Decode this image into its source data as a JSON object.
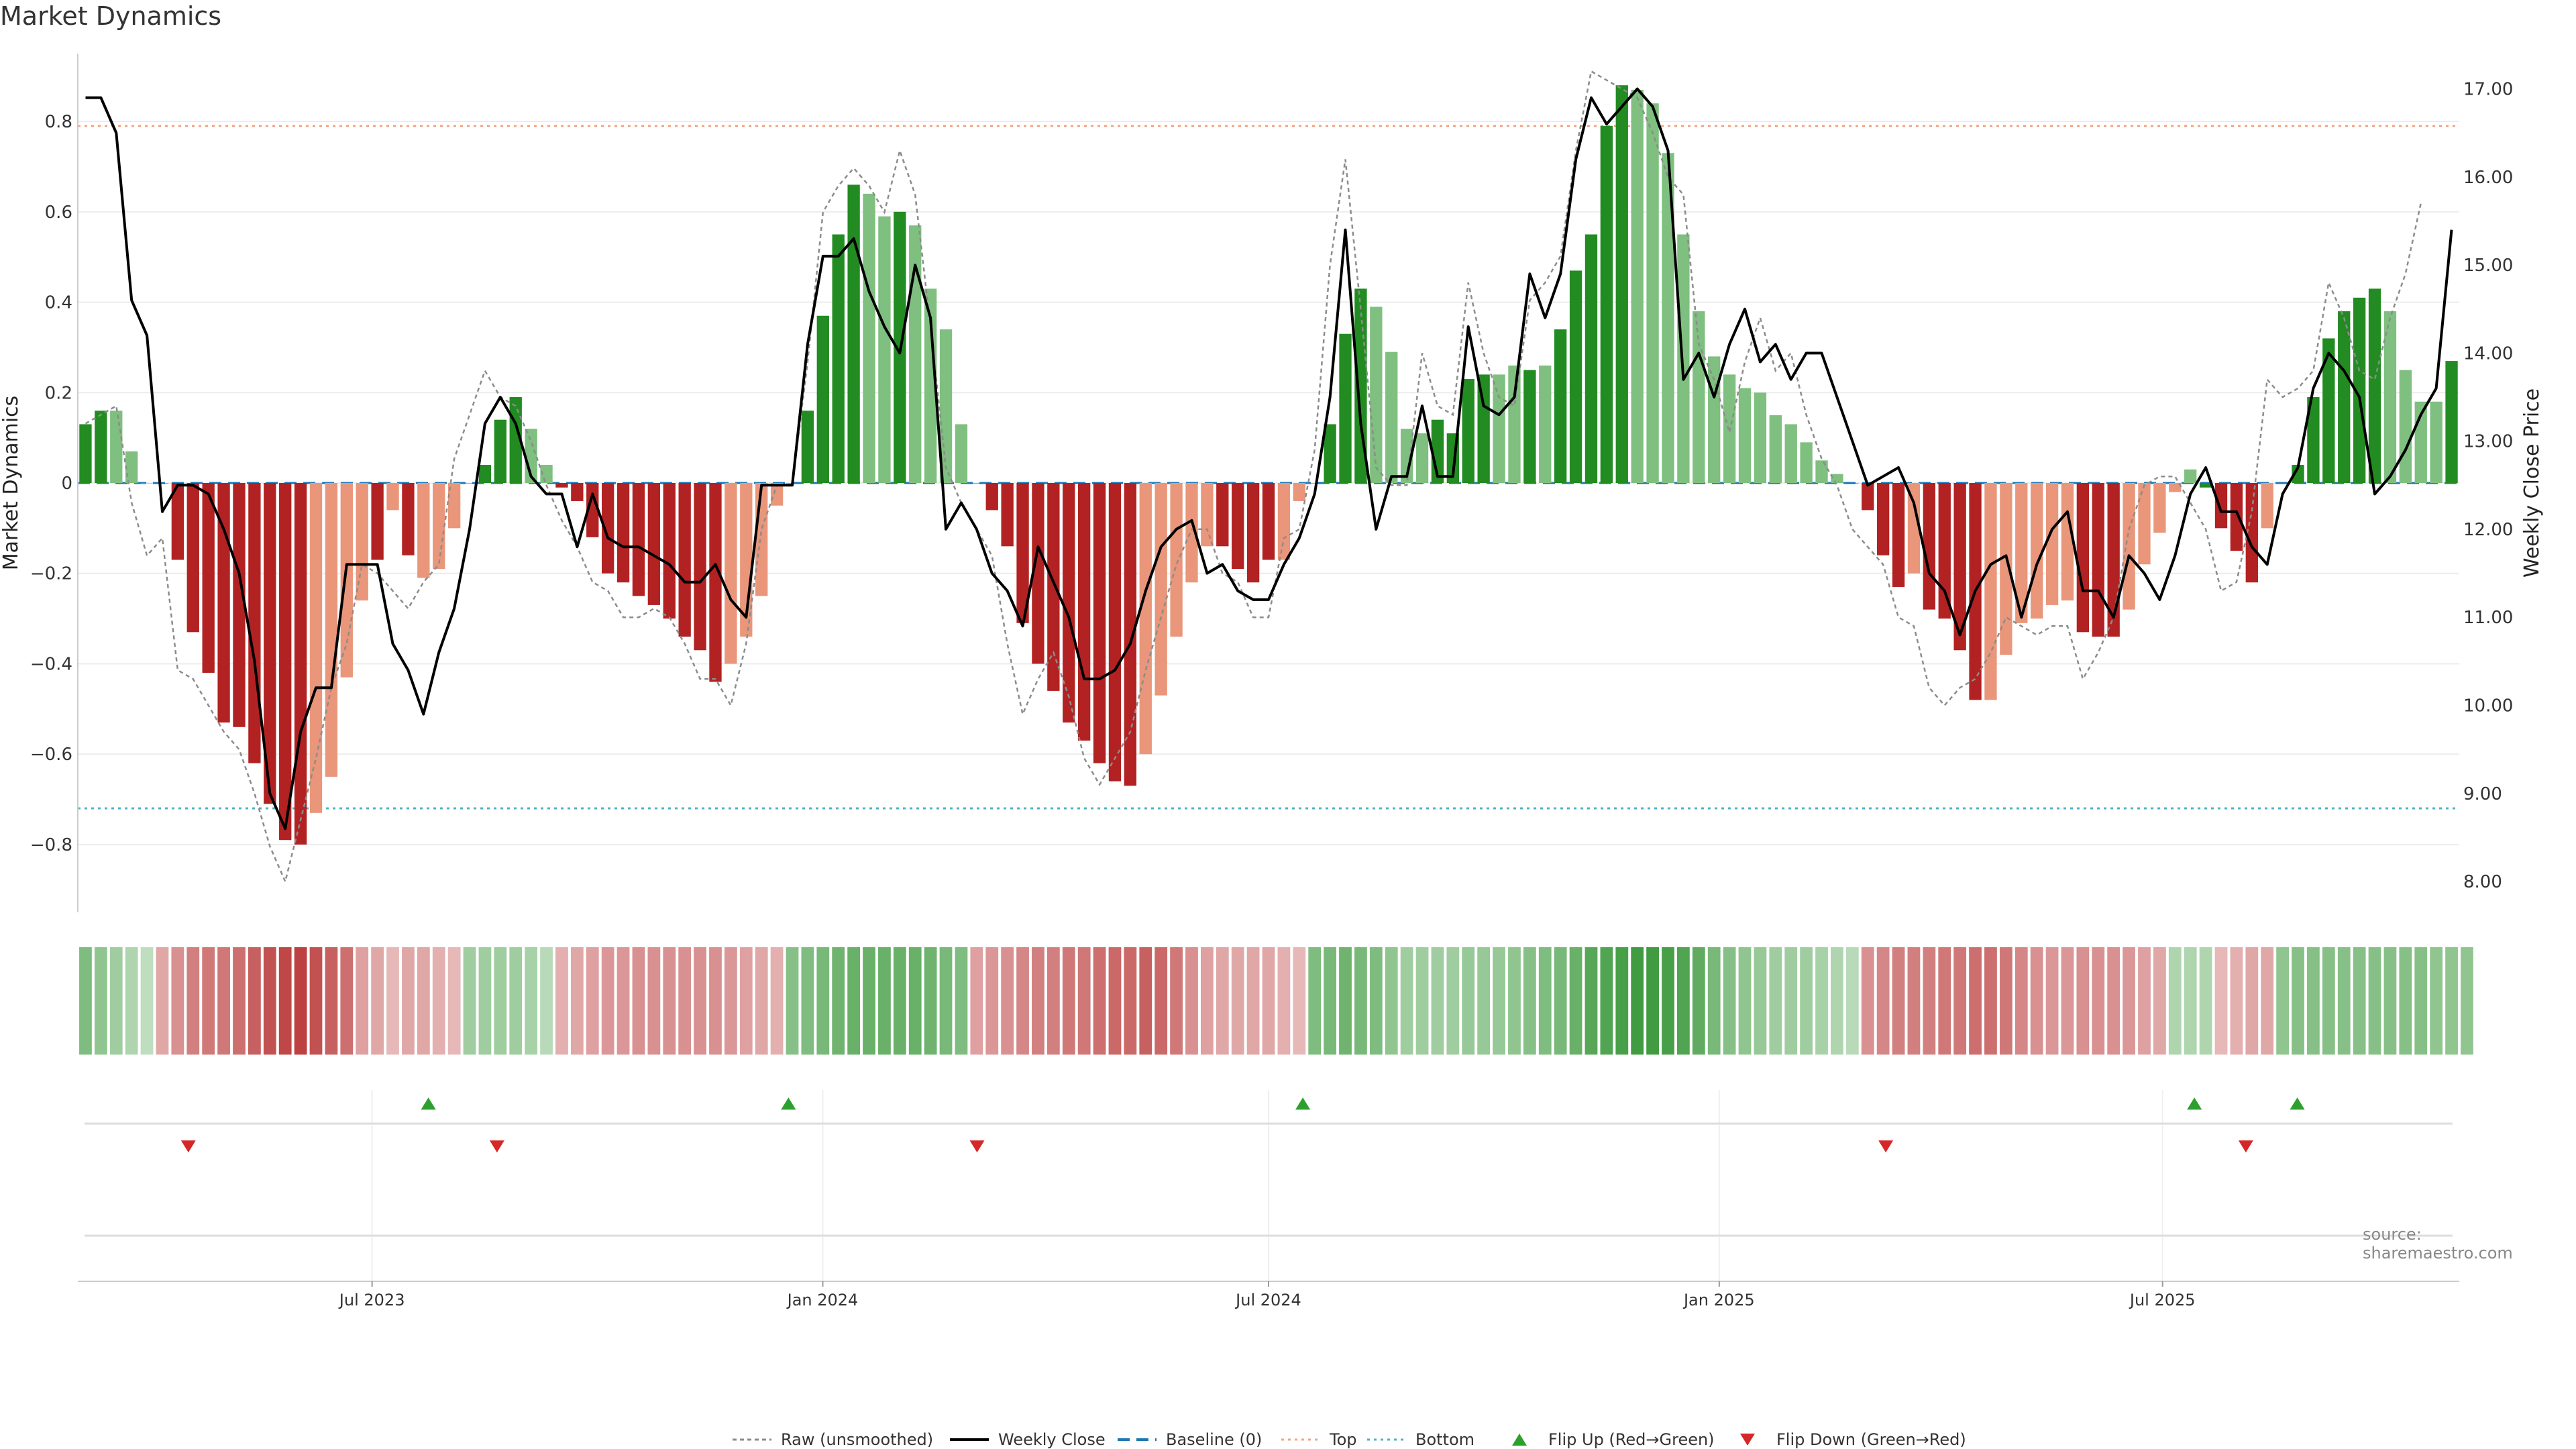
{
  "title": "Market Dynamics",
  "source": "source: sharemaestro.com",
  "colors": {
    "up_strong": "#228b22",
    "up_weak": "#7fbf7f",
    "down_strong": "#b22222",
    "down_weak": "#e9967a",
    "weekly": "#000000",
    "raw": "#8c8c8c",
    "baseline": "#1f77b4",
    "top": "#f4a582",
    "bottom": "#4fb3c8",
    "flip_up": "#2ca02c",
    "flip_down": "#d62728"
  },
  "legend": [
    {
      "label": "Raw (unsmoothed)",
      "icon": "raw-line-icon"
    },
    {
      "label": "Weekly Close",
      "icon": "weekly-line-icon"
    },
    {
      "label": "Baseline (0)",
      "icon": "baseline-line-icon"
    },
    {
      "label": "Top",
      "icon": "top-line-icon"
    },
    {
      "label": "Bottom",
      "icon": "bottom-line-icon"
    },
    {
      "label": "Flip Up (Red→Green)",
      "icon": "triangle-up-icon"
    },
    {
      "label": "Flip Down (Green→Red)",
      "icon": "triangle-down-icon"
    }
  ],
  "chart_data": {
    "type": "bar",
    "title": "Market Dynamics",
    "ylabel": "Market Dynamics",
    "y2label": "Weekly Close Price",
    "ylim": [
      -0.95,
      0.95
    ],
    "y2lim": [
      7.65,
      17.4
    ],
    "yticks": [
      -0.8,
      -0.6,
      -0.4,
      -0.2,
      0,
      0.2,
      0.4,
      0.6,
      0.8
    ],
    "ytick_labels": [
      "−0.8",
      "−0.6",
      "−0.4",
      "−0.2",
      "0",
      "0.2",
      "0.4",
      "0.6",
      "0.8"
    ],
    "y2ticks": [
      8,
      9,
      10,
      11,
      12,
      13,
      14,
      15,
      16,
      17
    ],
    "y2tick_labels": [
      "8.00",
      "9.00",
      "10.00",
      "11.00",
      "12.00",
      "13.00",
      "14.00",
      "15.00",
      "16.00",
      "17.00"
    ],
    "x_start": "2023-03-06",
    "x_end": "2025-10-27",
    "xticks": [
      {
        "date": "2023-07-01",
        "label": "Jul 2023"
      },
      {
        "date": "2024-01-01",
        "label": "Jan 2024"
      },
      {
        "date": "2024-07-01",
        "label": "Jul 2024"
      },
      {
        "date": "2025-01-01",
        "label": "Jan 2025"
      },
      {
        "date": "2025-07-01",
        "label": "Jul 2025"
      }
    ],
    "top": 0.79,
    "bottom": -0.72,
    "baseline": 0,
    "grid": true,
    "legend_position": "bottom",
    "bars": [
      0.13,
      0.16,
      0.16,
      0.07,
      0,
      0,
      -0.17,
      -0.33,
      -0.42,
      -0.53,
      -0.54,
      -0.62,
      -0.71,
      -0.79,
      -0.8,
      -0.73,
      -0.65,
      -0.43,
      -0.26,
      -0.17,
      -0.06,
      -0.16,
      -0.21,
      -0.19,
      -0.1,
      0,
      0.04,
      0.14,
      0.19,
      0.12,
      0.04,
      -0.01,
      -0.04,
      -0.12,
      -0.2,
      -0.22,
      -0.25,
      -0.27,
      -0.3,
      -0.34,
      -0.37,
      -0.44,
      -0.4,
      -0.34,
      -0.25,
      -0.05,
      0,
      0.16,
      0.37,
      0.55,
      0.66,
      0.64,
      0.59,
      0.6,
      0.57,
      0.43,
      0.34,
      0.13,
      0,
      -0.06,
      -0.14,
      -0.31,
      -0.4,
      -0.46,
      -0.53,
      -0.57,
      -0.62,
      -0.66,
      -0.67,
      -0.6,
      -0.47,
      -0.34,
      -0.22,
      -0.14,
      -0.14,
      -0.19,
      -0.22,
      -0.17,
      -0.17,
      -0.04,
      0,
      0.13,
      0.33,
      0.43,
      0.39,
      0.29,
      0.12,
      0.11,
      0.14,
      0.11,
      0.23,
      0.24,
      0.24,
      0.26,
      0.25,
      0.26,
      0.34,
      0.47,
      0.55,
      0.79,
      0.88,
      0.87,
      0.84,
      0.73,
      0.55,
      0.38,
      0.28,
      0.24,
      0.21,
      0.2,
      0.15,
      0.13,
      0.09,
      0.05,
      0.02,
      0,
      -0.06,
      -0.16,
      -0.23,
      -0.2,
      -0.28,
      -0.3,
      -0.37,
      -0.48,
      -0.48,
      -0.38,
      -0.31,
      -0.3,
      -0.27,
      -0.26,
      -0.33,
      -0.34,
      -0.34,
      -0.28,
      -0.18,
      -0.11,
      -0.02,
      0.03,
      -0.01,
      -0.1,
      -0.15,
      -0.22,
      -0.1,
      0,
      0.04,
      0.19,
      0.32,
      0.38,
      0.41,
      0.43,
      0.38,
      0.25,
      0.18,
      0.18,
      0.27
    ],
    "bar_colors": [
      "up_strong",
      "up_strong",
      "up_weak",
      "up_weak",
      "up_weak",
      "down_strong",
      "down_strong",
      "down_strong",
      "down_strong",
      "down_strong",
      "down_strong",
      "down_strong",
      "down_strong",
      "down_strong",
      "down_strong",
      "down_weak",
      "down_weak",
      "down_weak",
      "down_weak",
      "down_strong",
      "down_weak",
      "down_strong",
      "down_weak",
      "down_weak",
      "down_weak",
      "up_strong",
      "up_strong",
      "up_strong",
      "up_strong",
      "up_weak",
      "up_weak",
      "down_strong",
      "down_strong",
      "down_strong",
      "down_strong",
      "down_strong",
      "down_strong",
      "down_strong",
      "down_strong",
      "down_strong",
      "down_strong",
      "down_strong",
      "down_weak",
      "down_weak",
      "down_weak",
      "down_weak",
      "up_strong",
      "up_strong",
      "up_strong",
      "up_strong",
      "up_strong",
      "up_weak",
      "up_weak",
      "up_strong",
      "up_weak",
      "up_weak",
      "up_weak",
      "up_weak",
      "down_strong",
      "down_strong",
      "down_strong",
      "down_strong",
      "down_strong",
      "down_strong",
      "down_strong",
      "down_strong",
      "down_strong",
      "down_strong",
      "down_strong",
      "down_weak",
      "down_weak",
      "down_weak",
      "down_weak",
      "down_weak",
      "down_strong",
      "down_strong",
      "down_strong",
      "down_strong",
      "down_weak",
      "down_weak",
      "up_strong",
      "up_strong",
      "up_strong",
      "up_strong",
      "up_weak",
      "up_weak",
      "up_weak",
      "up_weak",
      "up_strong",
      "up_strong",
      "up_strong",
      "up_strong",
      "up_weak",
      "up_weak",
      "up_strong",
      "up_weak",
      "up_strong",
      "up_strong",
      "up_strong",
      "up_strong",
      "up_strong",
      "up_weak",
      "up_weak",
      "up_weak",
      "up_weak",
      "up_weak",
      "up_weak",
      "up_weak",
      "up_weak",
      "up_weak",
      "up_weak",
      "up_weak",
      "up_weak",
      "up_weak",
      "up_weak",
      "down_strong",
      "down_strong",
      "down_strong",
      "down_strong",
      "down_weak",
      "down_strong",
      "down_strong",
      "down_strong",
      "down_strong",
      "down_weak",
      "down_weak",
      "down_weak",
      "down_weak",
      "down_weak",
      "down_weak",
      "down_strong",
      "down_strong",
      "down_strong",
      "down_weak",
      "down_weak",
      "down_weak",
      "down_weak",
      "up_weak",
      "up_strong",
      "down_strong",
      "down_strong",
      "down_strong",
      "down_weak",
      "up_strong",
      "up_strong",
      "up_strong",
      "up_strong",
      "up_strong",
      "up_strong",
      "up_strong",
      "up_weak",
      "up_weak",
      "up_weak",
      "up_weak",
      "up_strong"
    ],
    "weekly_close": [
      16.9,
      16.9,
      16.5,
      14.6,
      14.2,
      12.2,
      12.5,
      12.5,
      12.4,
      12.0,
      11.5,
      10.5,
      9.0,
      8.6,
      9.7,
      10.2,
      10.2,
      11.6,
      11.6,
      11.6,
      10.7,
      10.4,
      9.9,
      10.6,
      11.1,
      12.0,
      13.2,
      13.5,
      13.2,
      12.6,
      12.4,
      12.4,
      11.8,
      12.4,
      11.9,
      11.8,
      11.8,
      11.7,
      11.6,
      11.4,
      11.4,
      11.6,
      11.2,
      11.0,
      12.5,
      12.5,
      12.5,
      14.1,
      15.1,
      15.1,
      15.3,
      14.7,
      14.3,
      14.0,
      15.0,
      14.4,
      12.0,
      12.3,
      12.0,
      11.5,
      11.3,
      10.9,
      11.8,
      11.4,
      11.0,
      10.3,
      10.3,
      10.4,
      10.7,
      11.3,
      11.8,
      12.0,
      12.1,
      11.5,
      11.6,
      11.3,
      11.2,
      11.2,
      11.6,
      11.9,
      12.4,
      13.5,
      15.4,
      13.2,
      12.0,
      12.6,
      12.6,
      13.4,
      12.6,
      12.6,
      14.3,
      13.4,
      13.3,
      13.5,
      14.9,
      14.4,
      14.9,
      16.2,
      16.9,
      16.6,
      16.8,
      17.0,
      16.8,
      16.3,
      13.7,
      14.0,
      13.5,
      14.1,
      14.5,
      13.9,
      14.1,
      13.7,
      14.0,
      14.0,
      13.5,
      13.0,
      12.5,
      12.6,
      12.7,
      12.3,
      11.5,
      11.3,
      10.8,
      11.3,
      11.6,
      11.7,
      11.0,
      11.6,
      12.0,
      12.2,
      11.3,
      11.3,
      11.0,
      11.7,
      11.5,
      11.2,
      11.7,
      12.4,
      12.7,
      12.2,
      12.2,
      11.8,
      11.6,
      12.4,
      12.7,
      13.6,
      14.0,
      13.8,
      13.5,
      12.4,
      12.6,
      12.9,
      13.3,
      13.6,
      15.4
    ],
    "raw": [
      13.2,
      13.3,
      13.4,
      12.3,
      11.7,
      11.9,
      10.4,
      10.3,
      10.0,
      9.7,
      9.5,
      9.0,
      8.4,
      8.0,
      8.7,
      9.4,
      10.2,
      10.7,
      11.6,
      11.5,
      11.3,
      11.1,
      11.4,
      11.6,
      12.8,
      13.3,
      13.8,
      13.5,
      13.4,
      13.0,
      12.5,
      12.1,
      11.8,
      11.4,
      11.3,
      11.0,
      11.0,
      11.1,
      11.0,
      10.7,
      10.3,
      10.3,
      10.0,
      10.7,
      12.0,
      12.5,
      12.5,
      13.9,
      15.6,
      15.9,
      16.1,
      15.9,
      15.6,
      16.3,
      15.8,
      14.3,
      12.7,
      12.3,
      12.0,
      11.7,
      10.7,
      9.9,
      10.3,
      10.6,
      10.1,
      9.4,
      9.1,
      9.4,
      9.7,
      10.4,
      11.0,
      11.6,
      12.0,
      12.0,
      11.5,
      11.4,
      11.0,
      11.0,
      11.9,
      12.0,
      12.9,
      15.0,
      16.2,
      14.5,
      12.7,
      12.5,
      12.5,
      14.0,
      13.4,
      13.3,
      14.8,
      14.0,
      13.5,
      13.4,
      14.6,
      14.8,
      15.1,
      16.3,
      17.2,
      17.1,
      17.0,
      16.9,
      16.5,
      16.0,
      15.8,
      14.1,
      13.7,
      13.1,
      13.9,
      14.4,
      13.8,
      14.0,
      13.3,
      12.8,
      12.5,
      12.0,
      11.8,
      11.6,
      11.0,
      10.9,
      10.2,
      10.0,
      10.2,
      10.3,
      10.6,
      11.0,
      10.9,
      10.8,
      10.9,
      10.9,
      10.3,
      10.6,
      11.0,
      12.0,
      12.5,
      12.6,
      12.6,
      12.3,
      12.0,
      11.3,
      11.4,
      12.2,
      13.7,
      13.5,
      13.6,
      13.8,
      14.8,
      14.4,
      13.8,
      13.7,
      14.4,
      14.9,
      15.7
    ],
    "heat_strip": [
      0.55,
      0.45,
      0.35,
      0.25,
      0.15,
      -0.3,
      -0.45,
      -0.55,
      -0.6,
      -0.6,
      -0.65,
      -0.75,
      -0.85,
      -0.9,
      -0.95,
      -0.85,
      -0.75,
      -0.65,
      -0.35,
      -0.3,
      -0.2,
      -0.3,
      -0.3,
      -0.25,
      -0.2,
      0.35,
      0.35,
      0.35,
      0.35,
      0.3,
      0.2,
      -0.25,
      -0.3,
      -0.35,
      -0.4,
      -0.4,
      -0.45,
      -0.45,
      -0.45,
      -0.45,
      -0.45,
      -0.45,
      -0.4,
      -0.35,
      -0.3,
      -0.25,
      0.5,
      0.55,
      0.6,
      0.65,
      0.7,
      0.7,
      0.7,
      0.7,
      0.7,
      0.65,
      0.6,
      0.55,
      -0.35,
      -0.4,
      -0.45,
      -0.5,
      -0.55,
      -0.55,
      -0.6,
      -0.6,
      -0.65,
      -0.7,
      -0.7,
      -0.75,
      -0.7,
      -0.6,
      -0.45,
      -0.35,
      -0.3,
      -0.3,
      -0.3,
      -0.3,
      -0.25,
      -0.2,
      0.55,
      0.6,
      0.65,
      0.6,
      0.55,
      0.45,
      0.35,
      0.35,
      0.35,
      0.35,
      0.4,
      0.4,
      0.4,
      0.45,
      0.5,
      0.55,
      0.6,
      0.7,
      0.8,
      0.85,
      0.9,
      0.95,
      0.95,
      0.9,
      0.85,
      0.75,
      0.6,
      0.5,
      0.45,
      0.4,
      0.35,
      0.35,
      0.35,
      0.3,
      0.25,
      0.2,
      -0.45,
      -0.5,
      -0.55,
      -0.55,
      -0.55,
      -0.6,
      -0.6,
      -0.65,
      -0.65,
      -0.6,
      -0.5,
      -0.45,
      -0.4,
      -0.4,
      -0.45,
      -0.45,
      -0.45,
      -0.4,
      -0.35,
      -0.3,
      0.25,
      0.25,
      0.25,
      -0.2,
      -0.25,
      -0.3,
      -0.3,
      0.45,
      0.5,
      0.5,
      0.5,
      0.5,
      0.5,
      0.5,
      0.5,
      0.5,
      0.5,
      0.45,
      0.45,
      0.45
    ],
    "flip_up_dates": [
      "2023-07-24",
      "2023-12-18",
      "2024-07-15",
      "2025-07-14",
      "2025-08-25"
    ],
    "flip_down_dates": [
      "2023-04-17",
      "2023-08-21",
      "2024-03-04",
      "2025-03-10",
      "2025-08-04"
    ]
  }
}
